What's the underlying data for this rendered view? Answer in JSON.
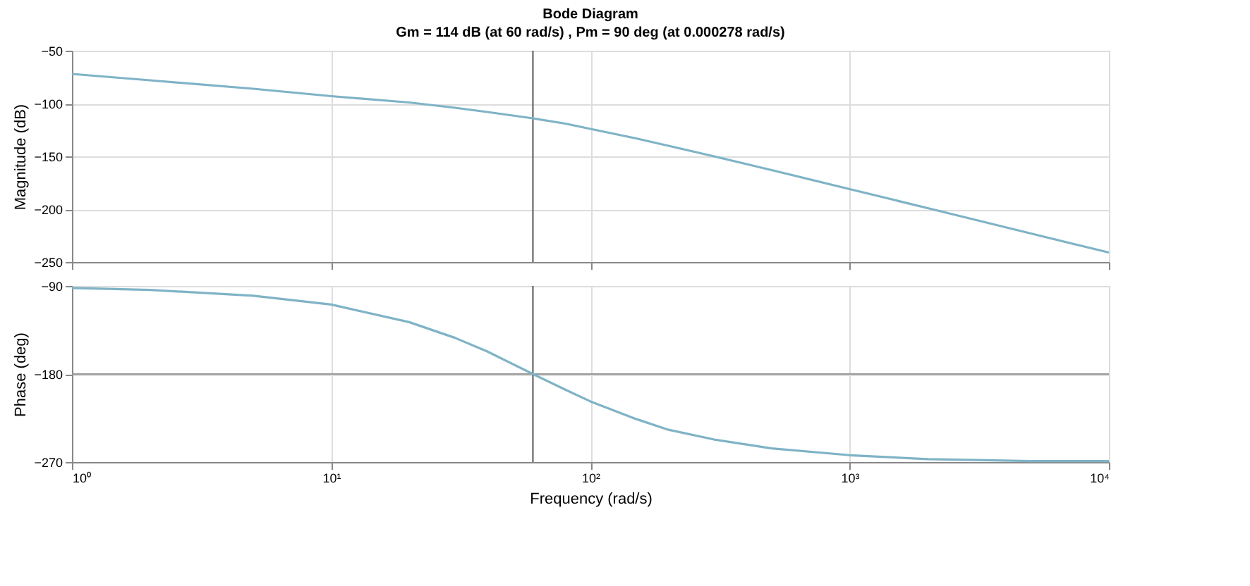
{
  "chart_data": [
    {
      "type": "line",
      "title": "Bode Diagram",
      "subtitle": "Gm = 114 dB (at 60 rad/s) ,  Pm = 90 deg (at 0.000278 rad/s)",
      "ylabel": "Magnitude (dB)",
      "x": [
        1,
        2,
        5,
        10,
        20,
        30,
        40,
        60,
        80,
        100,
        150,
        200,
        300,
        500,
        1000,
        2000,
        5000,
        10000
      ],
      "series": [
        {
          "color": "#7fb3c6",
          "values": [
            -72,
            -78,
            -86,
            -93,
            -99,
            -104,
            -108,
            -114,
            -119,
            -124,
            -133,
            -140,
            -150,
            -163,
            -181,
            -199,
            -223,
            -241
          ]
        }
      ],
      "log": "x",
      "xlim": [
        1,
        10000
      ],
      "ylim": [
        -250,
        -50
      ],
      "yticks": [
        -250,
        -200,
        -150,
        -100,
        -50
      ],
      "xticks": [
        {
          "value": 1,
          "label": null
        },
        {
          "value": 10,
          "label": null
        },
        {
          "value": 100,
          "label": null
        },
        {
          "value": 1000,
          "label": null
        },
        {
          "value": 10000,
          "label": null
        }
      ],
      "tick_labels": "y",
      "grid": true,
      "line_style": "solid",
      "marker": "none",
      "ref_lines": [
        {
          "axis": "x",
          "value": 60,
          "label": null,
          "color": "#555555"
        }
      ]
    },
    {
      "type": "line",
      "ylabel": "Phase (deg)",
      "xlabel": "Frequency  (rad/s)",
      "x": [
        1,
        2,
        5,
        10,
        20,
        30,
        40,
        60,
        80,
        100,
        150,
        200,
        300,
        500,
        1000,
        2000,
        5000,
        10000
      ],
      "series": [
        {
          "color": "#7fb3c6",
          "values": [
            -92,
            -94,
            -100,
            -109,
            -127,
            -143,
            -157,
            -180,
            -196,
            -208,
            -226,
            -237,
            -247,
            -256,
            -263,
            -267,
            -269,
            -269
          ]
        }
      ],
      "log": "x",
      "xlim": [
        1,
        10000
      ],
      "ylim": [
        -270,
        -90
      ],
      "yticks": [
        -270,
        -180,
        -90
      ],
      "xticks": [
        {
          "value": 1,
          "label": "10⁰"
        },
        {
          "value": 10,
          "label": "10¹"
        },
        {
          "value": 100,
          "label": "10²"
        },
        {
          "value": 1000,
          "label": "10³"
        },
        {
          "value": 10000,
          "label": "10⁴"
        }
      ],
      "grid": true,
      "line_style": "solid",
      "marker": "none",
      "ref_lines": [
        {
          "axis": "x",
          "value": 60,
          "label": null,
          "color": "#555555"
        },
        {
          "axis": "y",
          "value": -180,
          "label": null,
          "color": "#999999"
        }
      ]
    }
  ]
}
